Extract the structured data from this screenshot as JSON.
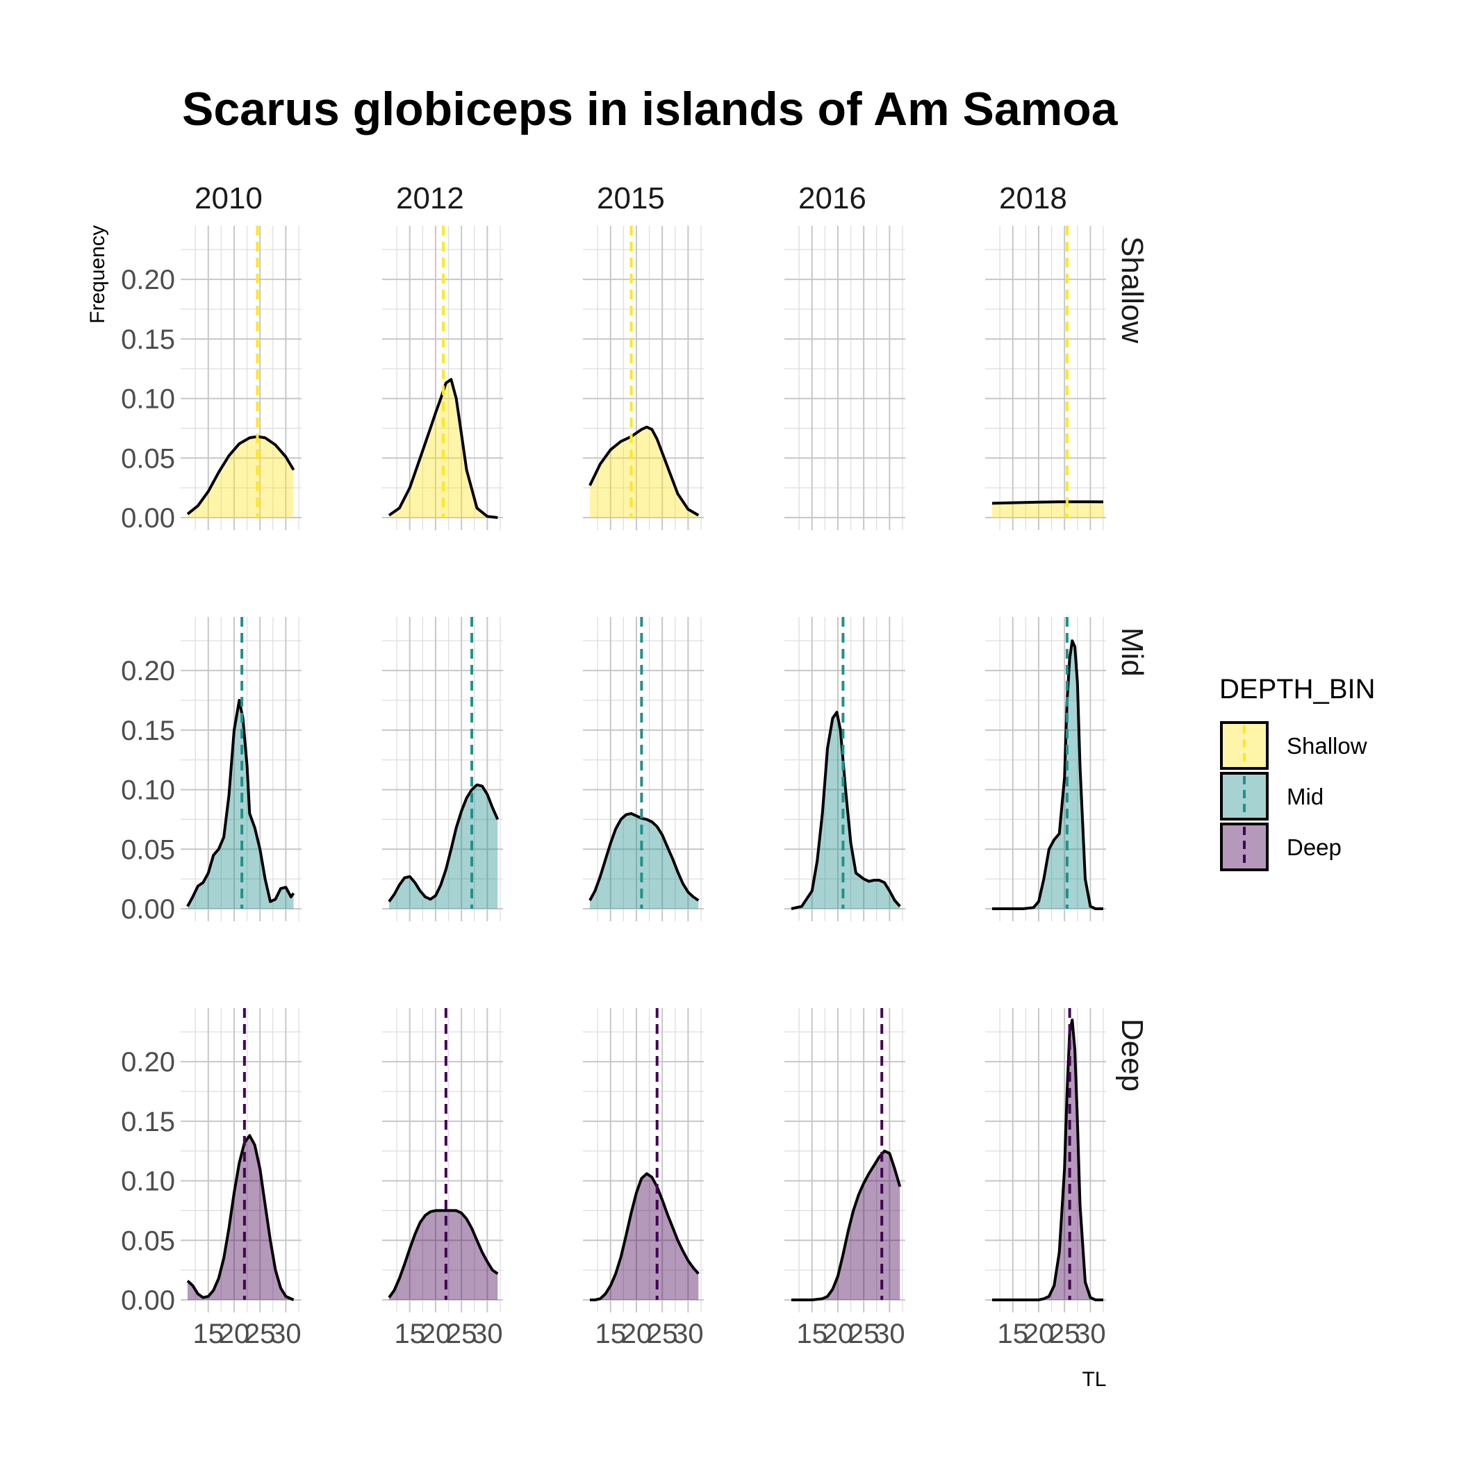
{
  "chart_data": {
    "type": "area",
    "title": "Scarus globiceps in islands of Am Samoa",
    "xlabel": "TL",
    "ylabel": "Frequency",
    "xlim": [
      11,
      32.5
    ],
    "ylim": [
      0,
      0.245
    ],
    "x_ticks": [
      15,
      20,
      25,
      30
    ],
    "y_ticks": [
      0.0,
      0.05,
      0.1,
      0.15,
      0.2
    ],
    "y_tick_labels": [
      "0.00",
      "0.05",
      "0.10",
      "0.15",
      "0.20"
    ],
    "columns": [
      "2010",
      "2012",
      "2015",
      "2016",
      "2018"
    ],
    "rows": [
      "Shallow",
      "Mid",
      "Deep"
    ],
    "legend": {
      "title": "DEPTH_BIN",
      "position": "right",
      "items": [
        {
          "label": "Shallow",
          "fill": "#fde725",
          "line": "#fde725"
        },
        {
          "label": "Mid",
          "fill": "#21908c",
          "line": "#21908c"
        },
        {
          "label": "Deep",
          "fill": "#440154",
          "line": "#440154"
        }
      ]
    },
    "colors": {
      "Shallow": "#fde725",
      "Mid": "#21908c",
      "Deep": "#440154",
      "curve": "#000000"
    },
    "fill_alpha": 0.4,
    "grid": true,
    "panels": [
      {
        "row": "Shallow",
        "col": "2010",
        "mean": 24.5,
        "x": [
          11,
          13,
          15,
          17,
          19,
          21,
          23,
          24.5,
          26,
          28,
          30,
          31.5
        ],
        "y": [
          0.003,
          0.01,
          0.022,
          0.038,
          0.052,
          0.062,
          0.067,
          0.068,
          0.067,
          0.061,
          0.051,
          0.04
        ]
      },
      {
        "row": "Shallow",
        "col": "2012",
        "mean": 21.5,
        "x": [
          11,
          13,
          15,
          17,
          19,
          20,
          21,
          22,
          23,
          24,
          25,
          26,
          28,
          30,
          32
        ],
        "y": [
          0.002,
          0.008,
          0.025,
          0.05,
          0.075,
          0.088,
          0.1,
          0.113,
          0.116,
          0.1,
          0.07,
          0.04,
          0.008,
          0.001,
          0.0
        ]
      },
      {
        "row": "Shallow",
        "col": "2015",
        "mean": 19.0,
        "x": [
          11,
          13,
          15,
          17,
          19,
          21,
          22,
          23,
          24,
          26,
          28,
          30,
          32
        ],
        "y": [
          0.027,
          0.045,
          0.057,
          0.064,
          0.068,
          0.074,
          0.076,
          0.074,
          0.066,
          0.043,
          0.02,
          0.007,
          0.002
        ]
      },
      {
        "row": "Shallow",
        "col": "2016",
        "mean": null,
        "x": [],
        "y": []
      },
      {
        "row": "Shallow",
        "col": "2018",
        "mean": 25.5,
        "x": [
          11,
          15,
          20,
          25,
          30,
          32.5
        ],
        "y": [
          0.012,
          0.0125,
          0.013,
          0.0133,
          0.0133,
          0.0132
        ]
      },
      {
        "row": "Mid",
        "col": "2010",
        "mean": 21.5,
        "x": [
          11,
          12,
          13,
          14,
          15,
          16,
          17,
          18,
          19,
          20,
          21,
          21.7,
          22.5,
          23,
          24,
          25,
          26,
          27,
          28,
          29,
          30,
          31,
          31.5
        ],
        "y": [
          0.002,
          0.01,
          0.019,
          0.022,
          0.03,
          0.045,
          0.05,
          0.06,
          0.095,
          0.15,
          0.175,
          0.16,
          0.12,
          0.08,
          0.068,
          0.05,
          0.025,
          0.006,
          0.008,
          0.017,
          0.018,
          0.01,
          0.013
        ]
      },
      {
        "row": "Mid",
        "col": "2012",
        "mean": 27.0,
        "x": [
          11,
          12,
          13,
          14,
          15,
          16,
          17,
          18,
          19,
          20,
          21,
          22,
          23,
          24,
          25,
          26,
          27,
          28,
          29,
          30,
          31,
          32
        ],
        "y": [
          0.006,
          0.012,
          0.02,
          0.026,
          0.027,
          0.022,
          0.015,
          0.01,
          0.008,
          0.011,
          0.02,
          0.033,
          0.05,
          0.068,
          0.082,
          0.093,
          0.1,
          0.104,
          0.103,
          0.096,
          0.085,
          0.075
        ]
      },
      {
        "row": "Mid",
        "col": "2015",
        "mean": 21.0,
        "x": [
          11,
          12,
          13,
          14,
          15,
          16,
          17,
          18,
          19,
          20,
          21,
          22,
          23,
          24,
          25,
          26,
          27,
          28,
          29,
          30,
          31,
          32
        ],
        "y": [
          0.007,
          0.015,
          0.027,
          0.041,
          0.055,
          0.067,
          0.075,
          0.079,
          0.08,
          0.078,
          0.076,
          0.075,
          0.073,
          0.069,
          0.062,
          0.052,
          0.042,
          0.031,
          0.021,
          0.014,
          0.01,
          0.007
        ]
      },
      {
        "row": "Mid",
        "col": "2016",
        "mean": 21.0,
        "x": [
          11,
          13,
          15,
          16,
          17,
          18,
          19,
          19.8,
          20.5,
          21.5,
          22.5,
          23.5,
          25,
          26,
          27,
          28,
          29,
          30,
          31,
          32
        ],
        "y": [
          0.0,
          0.002,
          0.015,
          0.04,
          0.08,
          0.135,
          0.16,
          0.165,
          0.15,
          0.1,
          0.055,
          0.03,
          0.025,
          0.023,
          0.024,
          0.024,
          0.022,
          0.015,
          0.007,
          0.002
        ]
      },
      {
        "row": "Mid",
        "col": "2018",
        "mean": 25.5,
        "x": [
          11,
          13,
          15,
          17,
          19,
          20,
          21,
          22,
          23,
          24,
          25,
          25.5,
          26,
          26.5,
          27,
          27.5,
          28,
          29,
          30,
          31,
          32.5
        ],
        "y": [
          0.0,
          0.0,
          0.0,
          0.0,
          0.001,
          0.006,
          0.025,
          0.05,
          0.058,
          0.063,
          0.11,
          0.175,
          0.21,
          0.225,
          0.22,
          0.19,
          0.12,
          0.025,
          0.002,
          0.0,
          0.0
        ]
      },
      {
        "row": "Deep",
        "col": "2010",
        "mean": 22.0,
        "x": [
          11,
          12,
          13,
          14,
          15,
          16,
          17,
          18,
          19,
          20,
          21,
          22,
          23,
          24,
          25,
          26,
          27,
          28,
          29,
          30,
          31.5
        ],
        "y": [
          0.016,
          0.012,
          0.005,
          0.002,
          0.003,
          0.008,
          0.018,
          0.035,
          0.06,
          0.09,
          0.115,
          0.132,
          0.138,
          0.13,
          0.11,
          0.08,
          0.05,
          0.025,
          0.01,
          0.003,
          0.0
        ]
      },
      {
        "row": "Deep",
        "col": "2012",
        "mean": 22.0,
        "x": [
          11,
          12,
          13,
          14,
          15,
          16,
          17,
          18,
          19,
          20,
          21,
          22,
          23,
          24,
          25,
          26,
          27,
          28,
          29,
          30,
          31,
          32
        ],
        "y": [
          0.002,
          0.008,
          0.018,
          0.03,
          0.043,
          0.055,
          0.065,
          0.071,
          0.074,
          0.075,
          0.075,
          0.075,
          0.075,
          0.075,
          0.073,
          0.068,
          0.06,
          0.05,
          0.04,
          0.032,
          0.025,
          0.022
        ]
      },
      {
        "row": "Deep",
        "col": "2015",
        "mean": 24.0,
        "x": [
          11,
          12,
          13,
          14,
          15,
          16,
          17,
          18,
          19,
          20,
          21,
          22,
          23,
          24,
          25,
          26,
          27,
          28,
          29,
          30,
          31,
          32
        ],
        "y": [
          0.0,
          0.0,
          0.001,
          0.005,
          0.012,
          0.022,
          0.036,
          0.054,
          0.073,
          0.09,
          0.102,
          0.106,
          0.103,
          0.095,
          0.084,
          0.072,
          0.061,
          0.05,
          0.041,
          0.033,
          0.027,
          0.022
        ]
      },
      {
        "row": "Deep",
        "col": "2016",
        "mean": 28.5,
        "x": [
          11,
          13,
          15,
          17,
          18,
          19,
          20,
          21,
          22,
          23,
          24,
          25,
          26,
          27,
          28,
          29,
          30,
          31,
          32
        ],
        "y": [
          0.0,
          0.0,
          0.0,
          0.001,
          0.003,
          0.009,
          0.02,
          0.038,
          0.058,
          0.075,
          0.088,
          0.098,
          0.106,
          0.113,
          0.12,
          0.125,
          0.123,
          0.11,
          0.095
        ]
      },
      {
        "row": "Deep",
        "col": "2018",
        "mean": 26.0,
        "x": [
          11,
          13,
          15,
          17,
          19,
          20,
          21,
          22,
          23,
          24,
          25,
          25.5,
          26,
          26.5,
          27,
          27.5,
          28,
          29,
          30,
          31,
          32.5
        ],
        "y": [
          0.0,
          0.0,
          0.0,
          0.0,
          0.0,
          0.0,
          0.001,
          0.003,
          0.012,
          0.04,
          0.11,
          0.175,
          0.225,
          0.235,
          0.21,
          0.15,
          0.08,
          0.015,
          0.002,
          0.0,
          0.0
        ]
      }
    ]
  }
}
